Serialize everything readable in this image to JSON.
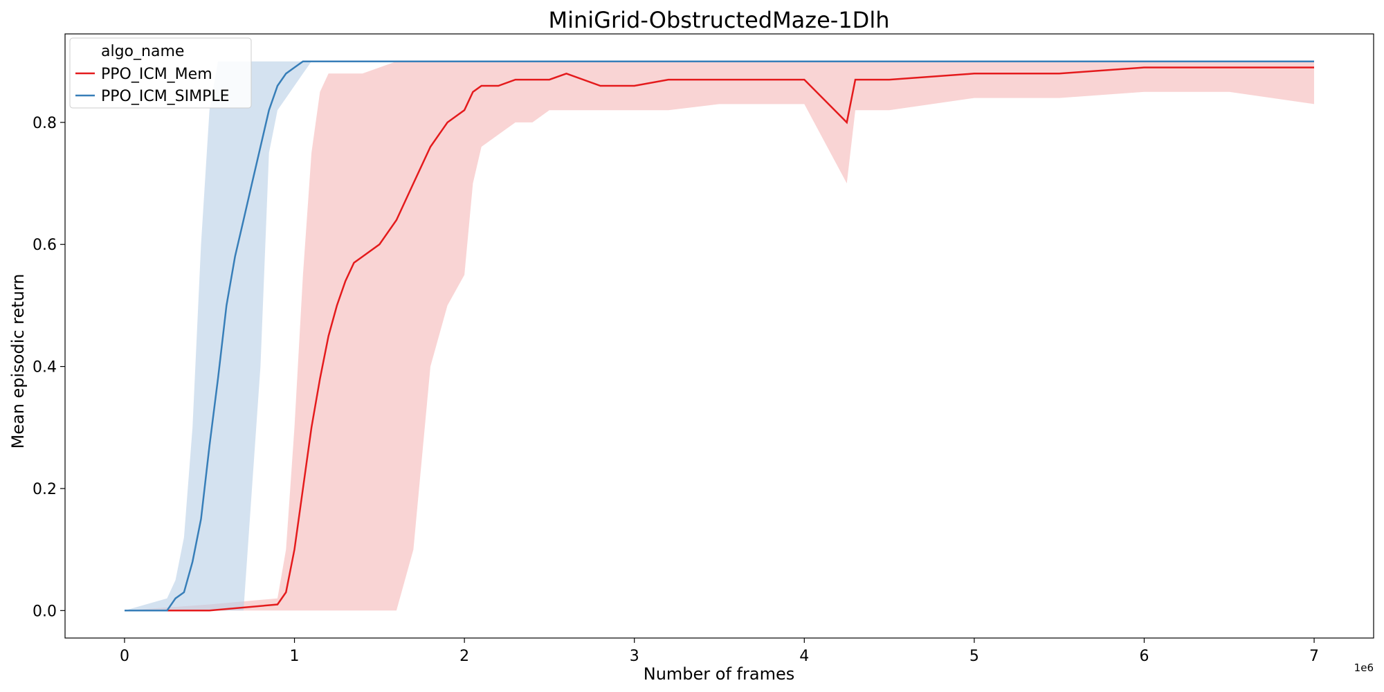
{
  "chart_data": {
    "type": "line",
    "title": "MiniGrid-ObstructedMaze-1Dlh",
    "xlabel": "Number of frames",
    "ylabel": "Mean episodic return",
    "x_offset_label": "1e6",
    "xlim": [
      -0.35,
      7.35
    ],
    "ylim": [
      -0.045,
      0.945
    ],
    "x_ticks": [
      0,
      1,
      2,
      3,
      4,
      5,
      6,
      7
    ],
    "x_tick_labels": [
      "0",
      "1",
      "2",
      "3",
      "4",
      "5",
      "6",
      "7"
    ],
    "y_ticks": [
      0.0,
      0.2,
      0.4,
      0.6,
      0.8
    ],
    "y_tick_labels": [
      "0.0",
      "0.2",
      "0.4",
      "0.6",
      "0.8"
    ],
    "grid": false,
    "legend": {
      "title": "algo_name",
      "position": "top-left"
    },
    "series": [
      {
        "name": "PPO_ICM_Mem",
        "color": "#e41a1c",
        "band_color": "#f5b7b8",
        "x": [
          0,
          0.5,
          0.9,
          0.95,
          1.0,
          1.05,
          1.1,
          1.15,
          1.2,
          1.25,
          1.3,
          1.35,
          1.4,
          1.5,
          1.6,
          1.7,
          1.8,
          1.9,
          2.0,
          2.05,
          2.1,
          2.2,
          2.3,
          2.4,
          2.5,
          2.6,
          2.8,
          3.0,
          3.2,
          3.5,
          4.0,
          4.25,
          4.3,
          4.5,
          5.0,
          5.3,
          5.5,
          6.0,
          6.5,
          7.0
        ],
        "y": [
          0.0,
          0.0,
          0.01,
          0.03,
          0.1,
          0.2,
          0.3,
          0.38,
          0.45,
          0.5,
          0.54,
          0.57,
          0.58,
          0.6,
          0.64,
          0.7,
          0.76,
          0.8,
          0.82,
          0.85,
          0.86,
          0.86,
          0.87,
          0.87,
          0.87,
          0.88,
          0.86,
          0.86,
          0.87,
          0.87,
          0.87,
          0.8,
          0.87,
          0.87,
          0.88,
          0.88,
          0.88,
          0.89,
          0.89,
          0.89
        ],
        "lower": [
          0.0,
          0.0,
          0.0,
          0.0,
          0.0,
          0.0,
          0.0,
          0.0,
          0.0,
          0.0,
          0.0,
          0.0,
          0.0,
          0.0,
          0.0,
          0.1,
          0.4,
          0.5,
          0.55,
          0.7,
          0.76,
          0.78,
          0.8,
          0.8,
          0.82,
          0.82,
          0.82,
          0.82,
          0.82,
          0.83,
          0.83,
          0.7,
          0.82,
          0.82,
          0.84,
          0.84,
          0.84,
          0.85,
          0.85,
          0.83
        ],
        "upper": [
          0.0,
          0.01,
          0.02,
          0.1,
          0.3,
          0.55,
          0.75,
          0.85,
          0.88,
          0.88,
          0.88,
          0.88,
          0.88,
          0.89,
          0.9,
          0.9,
          0.9,
          0.9,
          0.9,
          0.9,
          0.9,
          0.9,
          0.9,
          0.9,
          0.9,
          0.9,
          0.9,
          0.9,
          0.9,
          0.9,
          0.9,
          0.9,
          0.9,
          0.9,
          0.9,
          0.9,
          0.9,
          0.9,
          0.9,
          0.9
        ]
      },
      {
        "name": "PPO_ICM_SIMPLE",
        "color": "#377eb8",
        "band_color": "#b8cfe6",
        "x": [
          0,
          0.25,
          0.3,
          0.35,
          0.4,
          0.45,
          0.5,
          0.55,
          0.6,
          0.65,
          0.7,
          0.75,
          0.8,
          0.85,
          0.9,
          0.95,
          1.0,
          1.05,
          1.1,
          2.0,
          3.0,
          4.0,
          5.0,
          6.0,
          7.0
        ],
        "y": [
          0.0,
          0.0,
          0.02,
          0.03,
          0.08,
          0.15,
          0.27,
          0.38,
          0.5,
          0.58,
          0.64,
          0.7,
          0.76,
          0.82,
          0.86,
          0.88,
          0.89,
          0.9,
          0.9,
          0.9,
          0.9,
          0.9,
          0.9,
          0.9,
          0.9
        ],
        "lower": [
          0.0,
          0.0,
          0.0,
          0.0,
          0.0,
          0.0,
          0.0,
          0.0,
          0.0,
          0.0,
          0.0,
          0.2,
          0.4,
          0.75,
          0.82,
          0.84,
          0.86,
          0.88,
          0.9,
          0.9,
          0.9,
          0.9,
          0.9,
          0.9,
          0.9
        ],
        "upper": [
          0.0,
          0.02,
          0.05,
          0.12,
          0.3,
          0.6,
          0.82,
          0.9,
          0.9,
          0.9,
          0.9,
          0.9,
          0.9,
          0.9,
          0.9,
          0.9,
          0.9,
          0.9,
          0.9,
          0.9,
          0.9,
          0.9,
          0.9,
          0.9,
          0.9
        ]
      }
    ]
  }
}
